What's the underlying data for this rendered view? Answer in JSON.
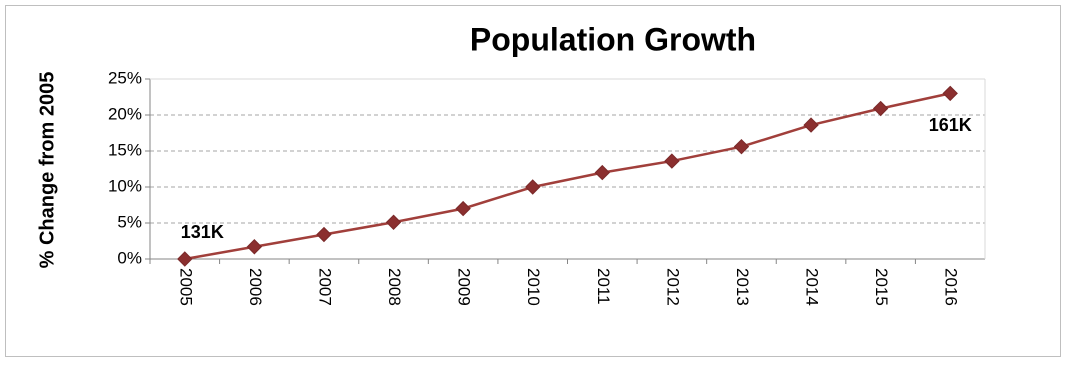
{
  "chart_data": {
    "type": "line",
    "title": "Population Growth",
    "y_label": "% Change from 2005",
    "categories": [
      "2005",
      "2006",
      "2007",
      "2008",
      "2009",
      "2010",
      "2011",
      "2012",
      "2013",
      "2014",
      "2015",
      "2016"
    ],
    "values": [
      0,
      1.7,
      3.4,
      5.1,
      7.0,
      10.0,
      12.0,
      13.6,
      15.6,
      18.6,
      20.9,
      23.0
    ],
    "color": "#a13f3b",
    "annotations": [
      "131K",
      "161K"
    ],
    "ylim": [
      0,
      25
    ],
    "yticks": [
      {
        "value": 0,
        "label": "0%"
      },
      {
        "value": 5,
        "label": "5%"
      },
      {
        "value": 10,
        "label": "10%"
      },
      {
        "value": 15,
        "label": "15%"
      },
      {
        "value": 20,
        "label": "20%"
      },
      {
        "value": 25,
        "label": "25%"
      }
    ],
    "grid": true
  }
}
